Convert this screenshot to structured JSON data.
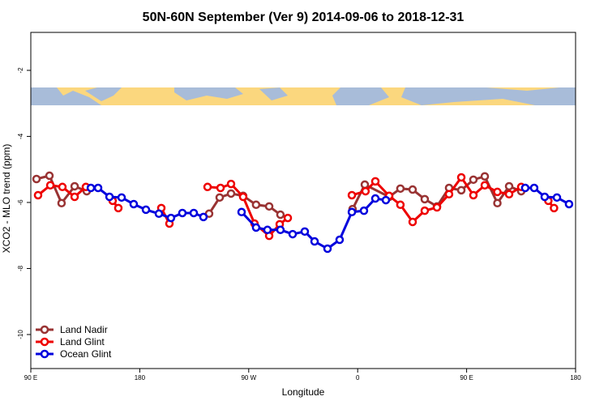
{
  "chart_data": {
    "type": "line",
    "title": "50N-60N September (Ver 9)   2014-09-06 to 2018-12-31",
    "xlabel": "Longitude",
    "ylabel": "XCO2 - MLO trend (ppm)",
    "xlim": [
      90,
      540
    ],
    "xticks": [
      {
        "value": 90,
        "label": "90 E"
      },
      {
        "value": 180,
        "label": "180"
      },
      {
        "value": 270,
        "label": "90 W"
      },
      {
        "value": 360,
        "label": "0"
      },
      {
        "value": 450,
        "label": "90 E"
      },
      {
        "value": 540,
        "label": "180"
      }
    ],
    "ylim": [
      -11.03,
      -0.85
    ],
    "yticks": [
      -10,
      -8,
      -6,
      -4,
      -2
    ],
    "legend": "bottom-left",
    "series": [
      {
        "name": "Land Nadir",
        "color": "#993333",
        "x": [
          94.7,
          105.4,
          115.4,
          126.2,
          136.2,
          null,
          237.3,
          246,
          255.4,
          265.4,
          276.1,
          286.9,
          296.2,
          null,
          355.8,
          365.9,
          386,
          395.3,
          405.4,
          415.4,
          425.5,
          435.5,
          445.6,
          455.6,
          465,
          475.4,
          485.1,
          495.1
        ],
        "values": [
          -5.29,
          -5.19,
          -6.02,
          -5.51,
          -5.66,
          null,
          -6.34,
          -5.85,
          -5.73,
          -5.8,
          -6.07,
          -6.12,
          -6.37,
          null,
          -6.2,
          -5.46,
          -5.83,
          -5.58,
          -5.61,
          -5.9,
          -6.12,
          -5.56,
          -5.63,
          -5.31,
          -5.21,
          -6.02,
          -5.51,
          -5.66
        ]
      },
      {
        "name": "Land Glint",
        "color": "#ee0000",
        "x": [
          96,
          106.1,
          116.1,
          126.2,
          135.5,
          null,
          157.6,
          162.3,
          null,
          197.8,
          204.5,
          null,
          236,
          246.7,
          255.4,
          265.4,
          274.8,
          286.9,
          295.6,
          302.3,
          null,
          355.2,
          366.5,
          374.6,
          386,
          395.3,
          405.4,
          415.4,
          425.5,
          435.5,
          445.6,
          455.6,
          465,
          475.4,
          485.1,
          495.1,
          null,
          517.5,
          522.2
        ],
        "values": [
          -5.78,
          -5.48,
          -5.53,
          -5.83,
          -5.53,
          null,
          -5.95,
          -6.17,
          null,
          -6.17,
          -6.64,
          null,
          -5.53,
          -5.56,
          -5.44,
          -5.83,
          -6.64,
          -7.01,
          -6.66,
          -6.47,
          null,
          -5.78,
          -5.66,
          -5.36,
          -5.8,
          -6.07,
          -6.59,
          -6.25,
          -6.15,
          -5.75,
          -5.24,
          -5.78,
          -5.48,
          -5.68,
          -5.75,
          -5.53,
          null,
          -5.95,
          -6.17
        ]
      },
      {
        "name": "Ocean Glint",
        "color": "#0000dd",
        "x": [
          139.6,
          145.6,
          155,
          165,
          175,
          185.1,
          195.8,
          205.8,
          215.2,
          224.6,
          232.6,
          null,
          264.1,
          276.1,
          285.5,
          296.2,
          306.3,
          316.3,
          324.4,
          335.1,
          345.1,
          355.2,
          365.2,
          374.6,
          383.3,
          null,
          498.4,
          505.8,
          514.5,
          524.6,
          534.6
        ],
        "values": [
          -5.56,
          -5.56,
          -5.83,
          -5.85,
          -6.05,
          -6.22,
          -6.34,
          -6.47,
          -6.32,
          -6.32,
          -6.44,
          null,
          -6.29,
          -6.76,
          -6.83,
          -6.83,
          -6.96,
          -6.88,
          -7.18,
          -7.4,
          -7.13,
          -6.29,
          -6.25,
          -5.88,
          -5.93,
          null,
          -5.56,
          -5.56,
          -5.83,
          -5.85,
          -6.05
        ]
      }
    ]
  }
}
